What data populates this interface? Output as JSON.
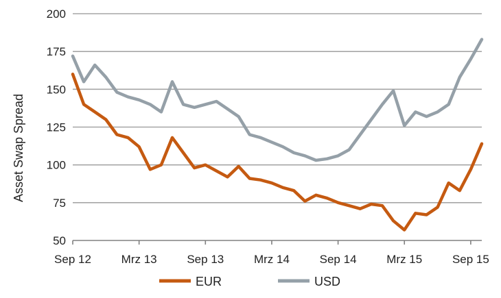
{
  "chart_data": {
    "type": "line",
    "ylabel": "Asset Swap Spread",
    "xlabel": "",
    "ylim": [
      50,
      200
    ],
    "yticks": [
      50,
      75,
      100,
      125,
      150,
      175,
      200
    ],
    "xlim": [
      "2012-09",
      "2015-10"
    ],
    "xticks": [
      {
        "label": "Sep 12",
        "date": "2012-09"
      },
      {
        "label": "Mrz 13",
        "date": "2013-03"
      },
      {
        "label": "Sep 13",
        "date": "2013-09"
      },
      {
        "label": "Mrz 14",
        "date": "2014-03"
      },
      {
        "label": "Sep 14",
        "date": "2014-09"
      },
      {
        "label": "Mrz 15",
        "date": "2015-03"
      },
      {
        "label": "Sep 15",
        "date": "2015-09"
      }
    ],
    "grid": true,
    "legend": "bottom",
    "series": [
      {
        "name": "EUR",
        "color": "#C55A11",
        "points": [
          [
            "2012-09",
            160
          ],
          [
            "2012-10",
            140
          ],
          [
            "2012-11",
            135
          ],
          [
            "2012-12",
            130
          ],
          [
            "2013-01",
            120
          ],
          [
            "2013-02",
            118
          ],
          [
            "2013-03",
            112
          ],
          [
            "2013-04",
            97
          ],
          [
            "2013-05",
            100
          ],
          [
            "2013-06",
            118
          ],
          [
            "2013-07",
            108
          ],
          [
            "2013-08",
            98
          ],
          [
            "2013-09",
            100
          ],
          [
            "2013-10",
            96
          ],
          [
            "2013-11",
            92
          ],
          [
            "2013-12",
            99
          ],
          [
            "2014-01",
            91
          ],
          [
            "2014-02",
            90
          ],
          [
            "2014-03",
            88
          ],
          [
            "2014-04",
            85
          ],
          [
            "2014-05",
            83
          ],
          [
            "2014-06",
            76
          ],
          [
            "2014-07",
            80
          ],
          [
            "2014-08",
            78
          ],
          [
            "2014-09",
            75
          ],
          [
            "2014-10",
            73
          ],
          [
            "2014-11",
            71
          ],
          [
            "2014-12",
            74
          ],
          [
            "2015-01",
            73
          ],
          [
            "2015-02",
            63
          ],
          [
            "2015-03",
            57
          ],
          [
            "2015-04",
            68
          ],
          [
            "2015-05",
            67
          ],
          [
            "2015-06",
            72
          ],
          [
            "2015-07",
            88
          ],
          [
            "2015-08",
            83
          ],
          [
            "2015-09",
            97
          ],
          [
            "2015-10",
            114
          ]
        ]
      },
      {
        "name": "USD",
        "color": "#95A0A8",
        "points": [
          [
            "2012-09",
            172
          ],
          [
            "2012-10",
            155
          ],
          [
            "2012-11",
            166
          ],
          [
            "2012-12",
            158
          ],
          [
            "2013-01",
            148
          ],
          [
            "2013-02",
            145
          ],
          [
            "2013-03",
            143
          ],
          [
            "2013-04",
            140
          ],
          [
            "2013-05",
            135
          ],
          [
            "2013-06",
            155
          ],
          [
            "2013-07",
            140
          ],
          [
            "2013-08",
            138
          ],
          [
            "2013-09",
            140
          ],
          [
            "2013-10",
            142
          ],
          [
            "2013-11",
            137
          ],
          [
            "2013-12",
            132
          ],
          [
            "2014-01",
            120
          ],
          [
            "2014-02",
            118
          ],
          [
            "2014-03",
            115
          ],
          [
            "2014-04",
            112
          ],
          [
            "2014-05",
            108
          ],
          [
            "2014-06",
            106
          ],
          [
            "2014-07",
            103
          ],
          [
            "2014-08",
            104
          ],
          [
            "2014-09",
            106
          ],
          [
            "2014-10",
            110
          ],
          [
            "2014-11",
            120
          ],
          [
            "2014-12",
            130
          ],
          [
            "2015-01",
            140
          ],
          [
            "2015-02",
            149
          ],
          [
            "2015-03",
            126
          ],
          [
            "2015-04",
            135
          ],
          [
            "2015-05",
            132
          ],
          [
            "2015-06",
            135
          ],
          [
            "2015-07",
            140
          ],
          [
            "2015-08",
            158
          ],
          [
            "2015-09",
            170
          ],
          [
            "2015-10",
            183
          ]
        ]
      }
    ]
  }
}
